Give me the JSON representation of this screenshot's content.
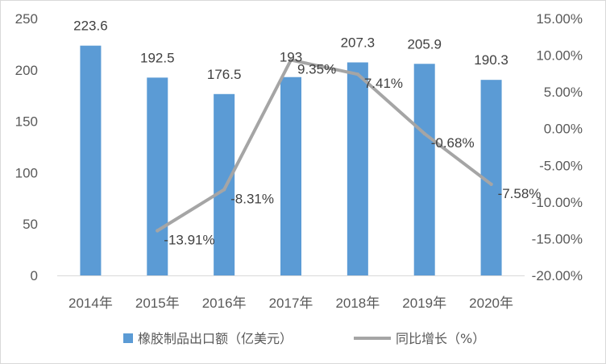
{
  "chart_data": {
    "type": "bar",
    "categories": [
      "2014年",
      "2015年",
      "2016年",
      "2017年",
      "2018年",
      "2019年",
      "2020年"
    ],
    "series": [
      {
        "name": "橡胶制品出口额（亿美元）",
        "type": "bar",
        "axis": "left",
        "values": [
          223.6,
          192.5,
          176.5,
          193,
          207.3,
          205.9,
          190.3
        ],
        "labels": [
          "223.6",
          "192.5",
          "176.5",
          "193",
          "207.3",
          "205.9",
          "190.3"
        ],
        "color": "#5b9bd5"
      },
      {
        "name": "同比增长（%）",
        "type": "line",
        "axis": "right",
        "values": [
          null,
          -13.91,
          -8.31,
          9.35,
          7.41,
          -0.68,
          -7.58
        ],
        "labels": [
          "",
          "-13.91%",
          "-8.31%",
          "9.35%",
          "7.41%",
          "-0.68%",
          "-7.58%"
        ],
        "color": "#a5a5a5"
      }
    ],
    "y_left": {
      "ylim": [
        0,
        250
      ],
      "ticks": [
        0,
        50,
        100,
        150,
        200,
        250
      ],
      "tick_labels": [
        "0",
        "50",
        "100",
        "150",
        "200",
        "250"
      ]
    },
    "y_right": {
      "ylim": [
        -20,
        15
      ],
      "ticks": [
        -20,
        -15,
        -10,
        -5,
        0,
        5,
        10,
        15
      ],
      "tick_labels": [
        "-20.00%",
        "-15.00%",
        "-10.00%",
        "-5.00%",
        "0.00%",
        "5.00%",
        "10.00%",
        "15.00%"
      ]
    },
    "grid": false,
    "legend": "bottom"
  }
}
